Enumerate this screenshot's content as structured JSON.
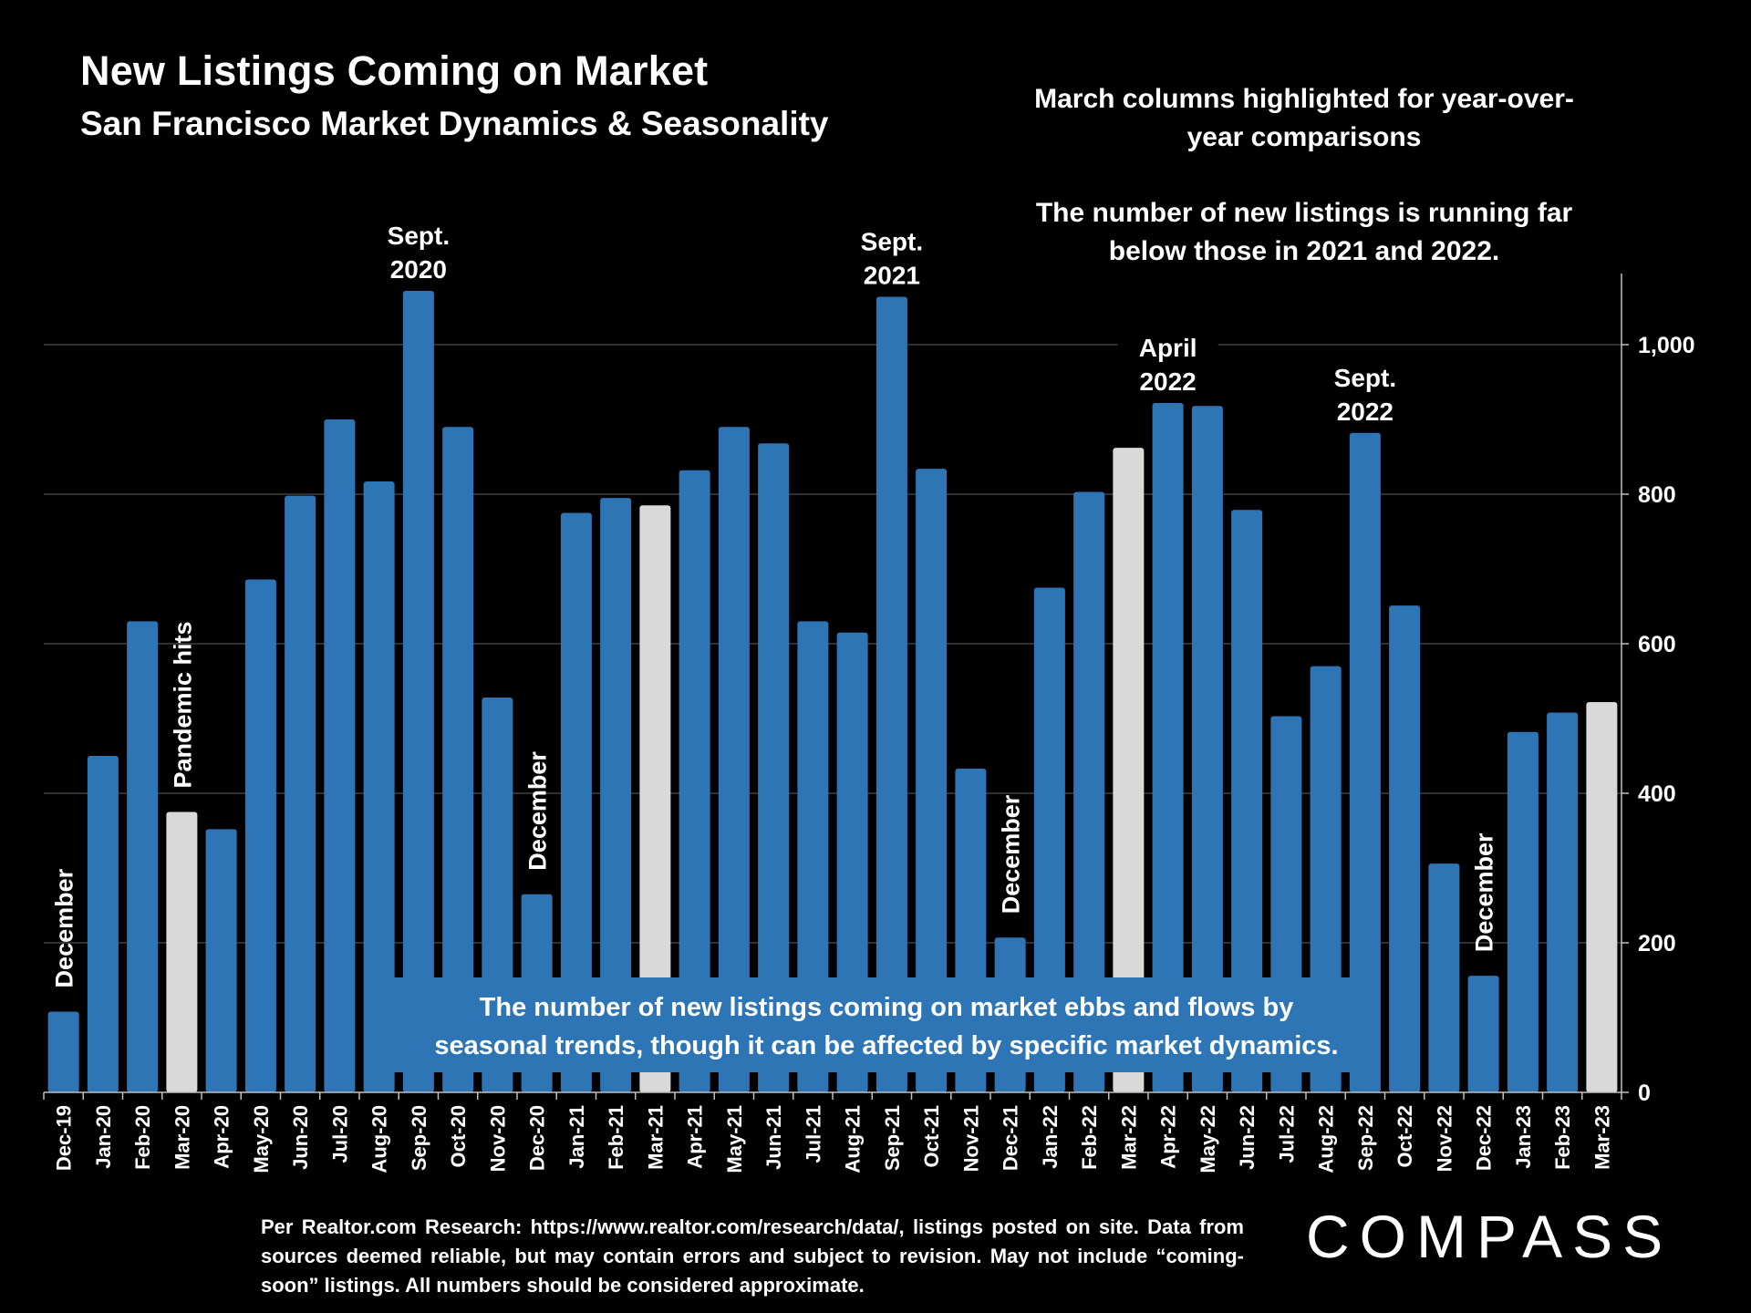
{
  "header": {
    "title": "New Listings Coming on Market",
    "subtitle": "San Francisco Market Dynamics & Seasonality"
  },
  "notes": {
    "note1": "March columns highlighted for year-over-year comparisons",
    "note2": "The number of new listings is running far below those in 2021 and 2022."
  },
  "chart_data": {
    "type": "bar",
    "categories": [
      "Dec-19",
      "Jan-20",
      "Feb-20",
      "Mar-20",
      "Apr-20",
      "May-20",
      "Jun-20",
      "Jul-20",
      "Aug-20",
      "Sep-20",
      "Oct-20",
      "Nov-20",
      "Dec-20",
      "Jan-21",
      "Feb-21",
      "Mar-21",
      "Apr-21",
      "May-21",
      "Jun-21",
      "Jul-21",
      "Aug-21",
      "Sep-21",
      "Oct-21",
      "Nov-21",
      "Dec-21",
      "Jan-22",
      "Feb-22",
      "Mar-22",
      "Apr-22",
      "May-22",
      "Jun-22",
      "Jul-22",
      "Aug-22",
      "Sep-22",
      "Oct-22",
      "Nov-22",
      "Dec-22",
      "Jan-23",
      "Feb-23",
      "Mar-23"
    ],
    "values": [
      108,
      450,
      630,
      375,
      352,
      686,
      798,
      900,
      817,
      1072,
      890,
      528,
      265,
      775,
      795,
      785,
      832,
      890,
      868,
      630,
      615,
      1064,
      834,
      433,
      207,
      675,
      803,
      862,
      922,
      918,
      779,
      503,
      570,
      882,
      651,
      306,
      156,
      482,
      508,
      522
    ],
    "highlighted": [
      "Mar-20",
      "Mar-21",
      "Mar-22",
      "Mar-23"
    ],
    "colors": {
      "bar": "#2E75B6",
      "highlight": "#D9D9D9",
      "grid": "#404040"
    },
    "ylim": [
      0,
      1100
    ],
    "yticks": [
      0,
      200,
      400,
      600,
      800,
      1000
    ],
    "ytick_labels": [
      "0",
      "200",
      "400",
      "600",
      "800",
      "1,000"
    ],
    "axis_position": "right",
    "annotations": [
      {
        "category": "Sep-20",
        "lines": [
          "Sept.",
          "2020"
        ],
        "orientation": "horizontal"
      },
      {
        "category": "Sep-21",
        "lines": [
          "Sept.",
          "2021"
        ],
        "orientation": "horizontal"
      },
      {
        "category": "Apr-22",
        "lines": [
          "April",
          "2022"
        ],
        "orientation": "horizontal"
      },
      {
        "category": "Sep-22",
        "lines": [
          "Sept.",
          "2022"
        ],
        "orientation": "horizontal"
      },
      {
        "category": "Dec-19",
        "lines": [
          "December"
        ],
        "orientation": "vertical"
      },
      {
        "category": "Mar-20",
        "lines": [
          "Pandemic hits"
        ],
        "orientation": "vertical"
      },
      {
        "category": "Dec-20",
        "lines": [
          "December"
        ],
        "orientation": "vertical"
      },
      {
        "category": "Dec-21",
        "lines": [
          "December"
        ],
        "orientation": "vertical"
      },
      {
        "category": "Dec-22",
        "lines": [
          "December"
        ],
        "orientation": "vertical"
      }
    ],
    "callout": [
      "The number of new listings coming on market ebbs and flows by",
      "seasonal trends, though it can be affected by specific market dynamics."
    ]
  },
  "footer": {
    "source": "Per Realtor.com Research:  https://www.realtor.com/research/data/, listings posted on site. Data from sources deemed reliable, but may contain errors and subject to revision. May not include “coming-soon” listings. All numbers should be considered approximate."
  },
  "logo": {
    "text": "COMPASS"
  }
}
